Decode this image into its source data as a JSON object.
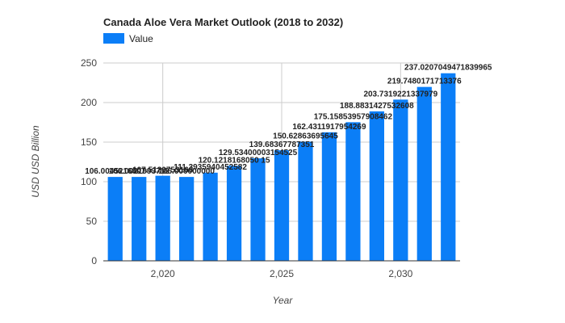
{
  "chart_data": {
    "type": "bar",
    "title": "Canada Aloe Vera Market Outlook (2018 to 2032)",
    "xlabel": "Year",
    "ylabel": "USD USD Billion",
    "ylim": [
      0,
      250
    ],
    "yticks": [
      0,
      50,
      100,
      150,
      200,
      250
    ],
    "xticks": [
      2020,
      2025,
      2030
    ],
    "xtick_labels": [
      "2,020",
      "2,025",
      "2,030"
    ],
    "grid": true,
    "legend_position": "top-left",
    "colors": {
      "bar": "#0b7ef7"
    },
    "x": [
      2018,
      2019,
      2020,
      2021,
      2022,
      2023,
      2024,
      2025,
      2026,
      2027,
      2028,
      2029,
      2030,
      2031,
      2032
    ],
    "series": [
      {
        "name": "Value",
        "values": [
          106.0045,
          106.0021,
          107.512,
          106.0,
          111.3935,
          120.1218,
          129.534,
          139.6837,
          150.6286,
          162.4312,
          175.1586,
          188.8831,
          203.7319,
          219.748,
          237.0207
        ]
      }
    ],
    "data_labels": [
      "106.0045216807",
      "106.0021993712",
      "107.5120753166",
      "106.000000000",
      "111.3935940452582",
      "120.1218168050 15",
      "129.53400003154525",
      "139.68367787351",
      "150.62863695645",
      "162.4311917954269",
      "175.15853957908462",
      "188.8831427532608",
      "203.7319221337979",
      "219.7480171713376",
      "237.0207049471839965"
    ]
  }
}
